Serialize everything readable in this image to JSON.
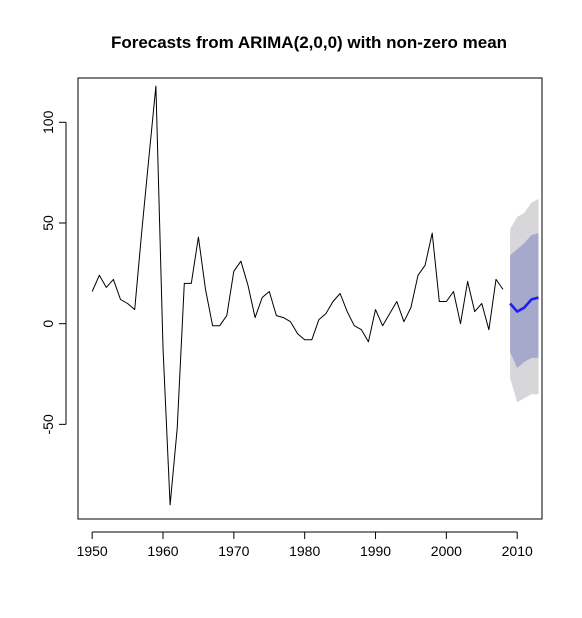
{
  "chart_data": {
    "type": "line",
    "title": "Forecasts from ARIMA(2,0,0) with non-zero mean",
    "xlabel": "",
    "ylabel": "",
    "xlim": [
      1948,
      2013.5
    ],
    "ylim": [
      -97,
      122
    ],
    "x_ticks": [
      1950,
      1960,
      1970,
      1980,
      1990,
      2000,
      2010
    ],
    "x_tick_labels": [
      "1950",
      "1960",
      "1970",
      "1980",
      "1990",
      "2000",
      "2010"
    ],
    "y_ticks": [
      -50,
      0,
      50,
      100
    ],
    "y_tick_labels": [
      "-50",
      "0",
      "50",
      "100"
    ],
    "grid": false,
    "legend": "none",
    "series": [
      {
        "role": "observed",
        "color": "#000000",
        "x": [
          1950,
          1951,
          1952,
          1953,
          1954,
          1955,
          1956,
          1957,
          1958,
          1959,
          1960,
          1961,
          1962,
          1963,
          1964,
          1965,
          1966,
          1967,
          1968,
          1969,
          1970,
          1971,
          1972,
          1973,
          1974,
          1975,
          1976,
          1977,
          1978,
          1979,
          1980,
          1981,
          1982,
          1983,
          1984,
          1985,
          1986,
          1987,
          1988,
          1989,
          1990,
          1991,
          1992,
          1993,
          1994,
          1995,
          1996,
          1997,
          1998,
          1999,
          2000,
          2001,
          2002,
          2003,
          2004,
          2005,
          2006,
          2007,
          2008
        ],
        "y": [
          16,
          24,
          18,
          22,
          12,
          10,
          7,
          46,
          82,
          118,
          -12,
          -90,
          -52,
          20,
          20,
          43,
          17,
          -1,
          -1,
          4,
          26,
          31,
          19,
          3,
          13,
          16,
          4,
          3,
          1,
          -5,
          -8,
          -8,
          2,
          5,
          11,
          15,
          6,
          -1,
          -3,
          -9,
          7,
          -1,
          5,
          11,
          1,
          8,
          24,
          29,
          45,
          11,
          11,
          16,
          0,
          21,
          6,
          10,
          -3,
          22,
          17
        ]
      },
      {
        "role": "forecast",
        "color": "#1a1aff",
        "x": [
          2009,
          2010,
          2011,
          2012,
          2013
        ],
        "y": [
          10,
          6,
          8,
          12,
          13
        ]
      }
    ],
    "intervals": [
      {
        "level": "95%",
        "color": "#d7d7d9",
        "x": [
          2009,
          2010,
          2011,
          2012,
          2013
        ],
        "lower": [
          -27,
          -39,
          -37,
          -35,
          -35
        ],
        "upper": [
          47,
          53,
          55,
          60,
          62
        ]
      },
      {
        "level": "80%",
        "color": "#a6a8cc",
        "x": [
          2009,
          2010,
          2011,
          2012,
          2013
        ],
        "lower": [
          -14,
          -22,
          -19,
          -17,
          -17
        ],
        "upper": [
          34,
          37,
          40,
          44,
          45
        ]
      }
    ]
  }
}
